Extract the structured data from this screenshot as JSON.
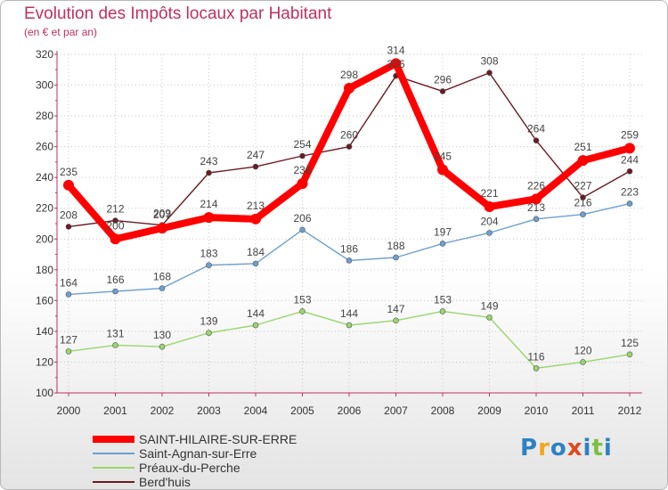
{
  "chart_data": {
    "type": "line",
    "title": "Evolution des Impôts locaux par Habitant",
    "subtitle": "(en € et par an)",
    "categories": [
      "2000",
      "2001",
      "2002",
      "2003",
      "2004",
      "2005",
      "2006",
      "2007",
      "2008",
      "2009",
      "2010",
      "2011",
      "2012"
    ],
    "yticks": [
      100,
      120,
      140,
      160,
      180,
      200,
      220,
      240,
      260,
      280,
      300,
      320
    ],
    "ylim": [
      100,
      320
    ],
    "series": [
      {
        "name": "Berd'huis",
        "color": "#6b1a24",
        "values": [
          208,
          212,
          209,
          243,
          247,
          254,
          260,
          306,
          296,
          308,
          264,
          227,
          244
        ]
      },
      {
        "name": "Préaux-du-Perche",
        "color": "#9ad66b",
        "values": [
          127,
          131,
          130,
          139,
          144,
          153,
          144,
          147,
          153,
          149,
          116,
          120,
          125
        ]
      },
      {
        "name": "Saint-Agnan-sur-Erre",
        "color": "#6d9fd0",
        "values": [
          164,
          166,
          168,
          183,
          184,
          206,
          186,
          188,
          197,
          204,
          213,
          216,
          223
        ]
      },
      {
        "name": "SAINT-HILAIRE-SUR-ERRE",
        "color": "#ff0000",
        "values": [
          235,
          200,
          207,
          214,
          213,
          236,
          298,
          314,
          245,
          221,
          226,
          251,
          259
        ]
      }
    ],
    "legend_order": [
      "SAINT-HILAIRE-SUR-ERRE",
      "Saint-Agnan-sur-Erre",
      "Préaux-du-Perche",
      "Berd'huis"
    ]
  },
  "logo": {
    "letters": [
      "P",
      "r",
      "o",
      "x",
      "i",
      "t",
      "i"
    ],
    "colors": [
      "#2d82c4",
      "#f2a81c",
      "#2d82c4",
      "#e04a1c",
      "#2d82c4",
      "#7cc043",
      "#2d82c4"
    ]
  }
}
